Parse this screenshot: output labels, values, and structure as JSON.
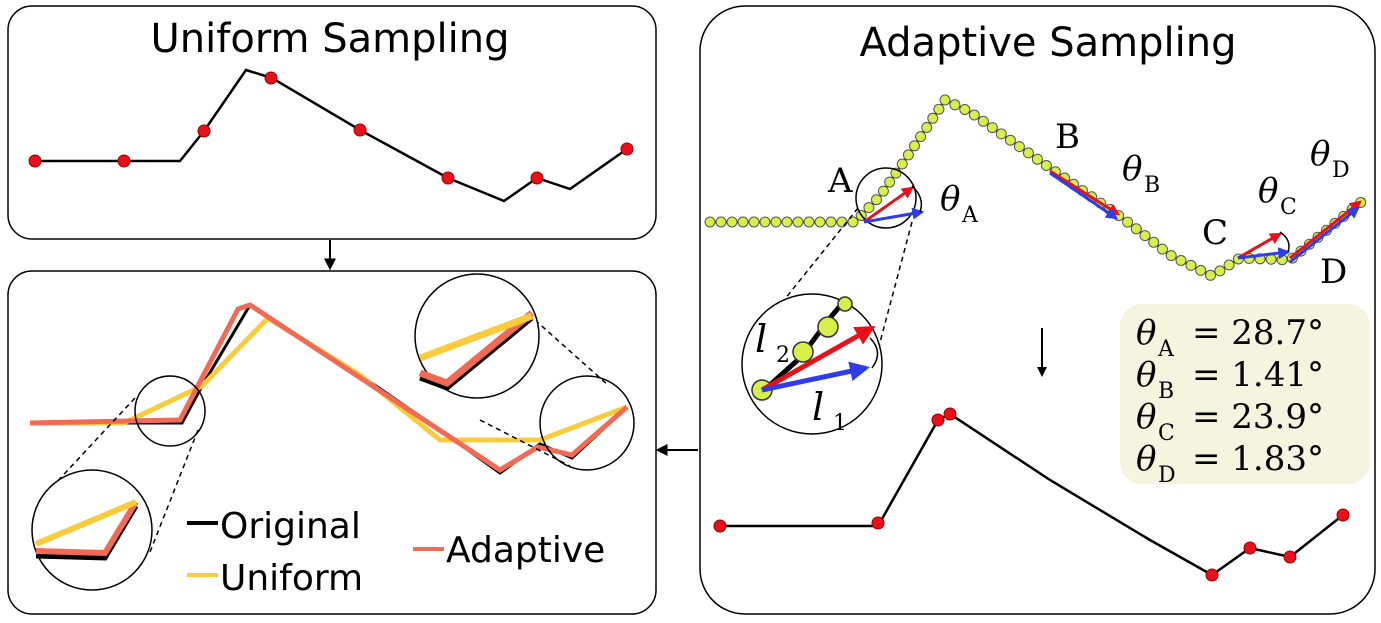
{
  "uniform_panel": {
    "title": "Uniform Sampling"
  },
  "adaptive_panel": {
    "title": "Adaptive Sampling",
    "point_labels": [
      "A",
      "B",
      "C",
      "D"
    ],
    "theta_symbol": "θ",
    "angle_labels": [
      "A",
      "B",
      "C",
      "D"
    ],
    "zoom_labels": {
      "l1": "l",
      "l1_sub": "1",
      "l2": "l",
      "l2_sub": "2"
    },
    "angles": [
      {
        "sub": "A",
        "value": "= 28.7°"
      },
      {
        "sub": "B",
        "value": "= 1.41°"
      },
      {
        "sub": "C",
        "value": "= 23.9°"
      },
      {
        "sub": "D",
        "value": "= 1.83°"
      }
    ]
  },
  "comparison_panel": {
    "legend": {
      "original": "Original",
      "uniform": "Uniform",
      "adaptive": "Adaptive"
    }
  },
  "colors": {
    "original": "#000000",
    "uniform": "#f9cc3d",
    "adaptive": "#f16a55",
    "sample_point": "#e8101a",
    "dense_point": "#d8ef4a",
    "vector_red": "#e8101a",
    "vector_blue": "#2e3de8",
    "angle_box": "#f4f4df"
  }
}
